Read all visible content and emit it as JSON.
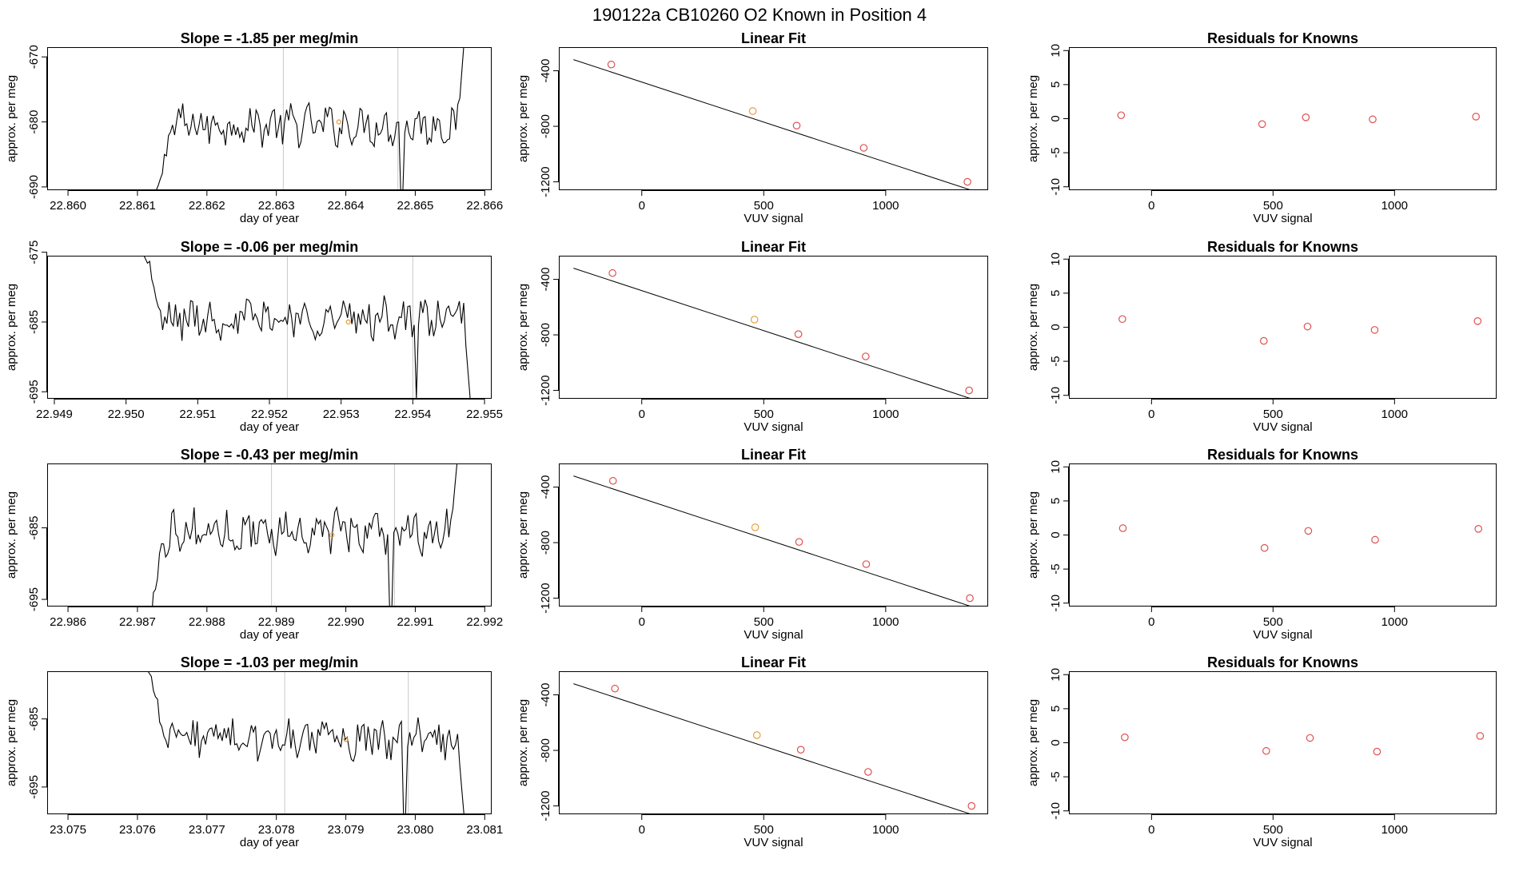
{
  "figure": {
    "main_title": "190122a      CB10260    O2 Known in Position  4"
  },
  "colors": {
    "trace": "#000000",
    "vline": "#c8c8c8",
    "known_point": "#e05050",
    "highlight_point": "#e8a040",
    "fit_line": "#000000"
  },
  "chart_data": [
    {
      "type": "line",
      "row": 1,
      "panel": "timeseries",
      "title": "Slope =  -1.85  per meg/min",
      "xlabel": "day of year",
      "ylabel": "approx. per meg",
      "xlim": [
        22.8597,
        22.8661
      ],
      "ylim": [
        -690.5,
        -668.5
      ],
      "xticks": [
        "22.860",
        "22.861",
        "22.862",
        "22.863",
        "22.864",
        "22.865",
        "22.866"
      ],
      "xtick_values": [
        22.86,
        22.861,
        22.862,
        22.863,
        22.864,
        22.865,
        22.866
      ],
      "yticks": [
        "-670",
        "-680",
        "-690"
      ],
      "ytick_values": [
        -670,
        -680,
        -690
      ],
      "vlines": [
        22.8631,
        22.86475
      ],
      "start_x": 22.8613,
      "end_x": 22.8657,
      "level": -680.5,
      "noise": 2.6,
      "lead_in": -691,
      "lead_out": -668,
      "dip_x": 22.8648,
      "dip_y": -691,
      "highlight": {
        "x": 22.8639,
        "y": -680
      }
    },
    {
      "type": "scatter",
      "row": 1,
      "panel": "linear_fit",
      "title": "Linear Fit",
      "xlabel": "VUV signal",
      "ylabel": "approx. per meg",
      "xlim": [
        -340,
        1420
      ],
      "ylim": [
        -1260,
        -230
      ],
      "xticks": [
        "0",
        "500",
        "1000"
      ],
      "xtick_values": [
        0,
        500,
        1000
      ],
      "yticks": [
        "-400",
        "-800",
        "-1200"
      ],
      "ytick_values": [
        -400,
        -800,
        -1200
      ],
      "points": [
        [
          -125,
          -355
        ],
        [
          455,
          -690
        ],
        [
          635,
          -795
        ],
        [
          910,
          -955
        ],
        [
          1335,
          -1200
        ]
      ],
      "highlight_index": 1,
      "fit_line": {
        "x": [
          -280,
          1420
        ],
        "y": [
          -320,
          -1300
        ]
      }
    },
    {
      "type": "scatter",
      "row": 1,
      "panel": "residuals",
      "title": "Residuals for Knowns",
      "xlabel": "VUV signal",
      "ylabel": "approx. per meg",
      "xlim": [
        -340,
        1420
      ],
      "ylim": [
        -10.5,
        10.5
      ],
      "xticks": [
        "0",
        "500",
        "1000"
      ],
      "xtick_values": [
        0,
        500,
        1000
      ],
      "yticks": [
        "-10",
        "-5",
        "0",
        "5",
        "10"
      ],
      "ytick_values": [
        -10,
        -5,
        0,
        5,
        10
      ],
      "points": [
        [
          -125,
          0.5
        ],
        [
          455,
          -0.8
        ],
        [
          635,
          0.2
        ],
        [
          910,
          -0.1
        ],
        [
          1335,
          0.3
        ]
      ]
    },
    {
      "type": "line",
      "row": 2,
      "panel": "timeseries",
      "title": "Slope =  -0.06  per meg/min",
      "xlabel": "day of year",
      "ylabel": "approx. per meg",
      "xlim": [
        22.9489,
        22.9551
      ],
      "ylim": [
        -696,
        -675.5
      ],
      "xticks": [
        "22.949",
        "22.950",
        "22.951",
        "22.952",
        "22.953",
        "22.954",
        "22.955"
      ],
      "xtick_values": [
        22.949,
        22.95,
        22.951,
        22.952,
        22.953,
        22.954,
        22.955
      ],
      "yticks": [
        "-675",
        "-685",
        "-695"
      ],
      "ytick_values": [
        -675,
        -685,
        -695
      ],
      "vlines": [
        22.95225,
        22.954
      ],
      "start_x": 22.9503,
      "end_x": 22.9548,
      "level": -684.5,
      "noise": 2.4,
      "lead_in": -675.5,
      "lead_out": -696,
      "dip_x": 22.95405,
      "dip_y": -696,
      "highlight": {
        "x": 22.9531,
        "y": -685
      }
    },
    {
      "type": "scatter",
      "row": 2,
      "panel": "linear_fit",
      "title": "Linear Fit",
      "xlabel": "VUV signal",
      "ylabel": "approx. per meg",
      "xlim": [
        -340,
        1420
      ],
      "ylim": [
        -1260,
        -230
      ],
      "xticks": [
        "0",
        "500",
        "1000"
      ],
      "xtick_values": [
        0,
        500,
        1000
      ],
      "yticks": [
        "-400",
        "-800",
        "-1200"
      ],
      "ytick_values": [
        -400,
        -800,
        -1200
      ],
      "points": [
        [
          -120,
          -355
        ],
        [
          462,
          -690
        ],
        [
          642,
          -795
        ],
        [
          918,
          -955
        ],
        [
          1342,
          -1200
        ]
      ],
      "highlight_index": 1,
      "fit_line": {
        "x": [
          -280,
          1420
        ],
        "y": [
          -320,
          -1300
        ]
      }
    },
    {
      "type": "scatter",
      "row": 2,
      "panel": "residuals",
      "title": "Residuals for Knowns",
      "xlabel": "VUV signal",
      "ylabel": "approx. per meg",
      "xlim": [
        -340,
        1420
      ],
      "ylim": [
        -10.5,
        10.5
      ],
      "xticks": [
        "0",
        "500",
        "1000"
      ],
      "xtick_values": [
        0,
        500,
        1000
      ],
      "yticks": [
        "-10",
        "-5",
        "0",
        "5",
        "10"
      ],
      "ytick_values": [
        -10,
        -5,
        0,
        5,
        10
      ],
      "points": [
        [
          -120,
          1.2
        ],
        [
          462,
          -2.0
        ],
        [
          642,
          0.1
        ],
        [
          918,
          -0.4
        ],
        [
          1342,
          0.9
        ]
      ]
    },
    {
      "type": "line",
      "row": 3,
      "panel": "timeseries",
      "title": "Slope =  -0.43  per meg/min",
      "xlabel": "day of year",
      "ylabel": "approx. per meg",
      "xlim": [
        22.9857,
        22.9921
      ],
      "ylim": [
        -696,
        -676
      ],
      "xticks": [
        "22.986",
        "22.987",
        "22.988",
        "22.989",
        "22.990",
        "22.991",
        "22.992"
      ],
      "xtick_values": [
        22.986,
        22.987,
        22.988,
        22.989,
        22.99,
        22.991,
        22.992
      ],
      "yticks": [
        "-685",
        "-695"
      ],
      "ytick_values": [
        -685,
        -695
      ],
      "vlines": [
        22.98893,
        22.9907
      ],
      "start_x": 22.9872,
      "end_x": 22.9916,
      "level": -685.5,
      "noise": 2.6,
      "lead_in": -697,
      "lead_out": -676,
      "dip_x": 22.99065,
      "dip_y": -697,
      "highlight": {
        "x": 22.9898,
        "y": -686
      }
    },
    {
      "type": "scatter",
      "row": 3,
      "panel": "linear_fit",
      "title": "Linear Fit",
      "xlabel": "VUV signal",
      "ylabel": "approx. per meg",
      "xlim": [
        -340,
        1420
      ],
      "ylim": [
        -1260,
        -230
      ],
      "xticks": [
        "0",
        "500",
        "1000"
      ],
      "xtick_values": [
        0,
        500,
        1000
      ],
      "yticks": [
        "-400",
        "-800",
        "-1200"
      ],
      "ytick_values": [
        -400,
        -800,
        -1200
      ],
      "points": [
        [
          -118,
          -355
        ],
        [
          465,
          -690
        ],
        [
          645,
          -795
        ],
        [
          920,
          -955
        ],
        [
          1345,
          -1200
        ]
      ],
      "highlight_index": 1,
      "fit_line": {
        "x": [
          -280,
          1420
        ],
        "y": [
          -320,
          -1300
        ]
      }
    },
    {
      "type": "scatter",
      "row": 3,
      "panel": "residuals",
      "title": "Residuals for Knowns",
      "xlabel": "VUV signal",
      "ylabel": "approx. per meg",
      "xlim": [
        -340,
        1420
      ],
      "ylim": [
        -10.5,
        10.5
      ],
      "xticks": [
        "0",
        "500",
        "1000"
      ],
      "xtick_values": [
        0,
        500,
        1000
      ],
      "yticks": [
        "-10",
        "-5",
        "0",
        "5",
        "10"
      ],
      "ytick_values": [
        -10,
        -5,
        0,
        5,
        10
      ],
      "points": [
        [
          -118,
          1.0
        ],
        [
          465,
          -1.9
        ],
        [
          645,
          0.6
        ],
        [
          920,
          -0.7
        ],
        [
          1345,
          0.9
        ]
      ]
    },
    {
      "type": "line",
      "row": 4,
      "panel": "timeseries",
      "title": "Slope =  -1.03  per meg/min",
      "xlabel": "day of year",
      "ylabel": "approx. per meg",
      "xlim": [
        23.0747,
        23.0811
      ],
      "ylim": [
        -699,
        -678
      ],
      "xticks": [
        "23.075",
        "23.076",
        "23.077",
        "23.078",
        "23.079",
        "23.080",
        "23.081"
      ],
      "xtick_values": [
        23.075,
        23.076,
        23.077,
        23.078,
        23.079,
        23.08,
        23.081
      ],
      "yticks": [
        "-685",
        "-695"
      ],
      "ytick_values": [
        -685,
        -695
      ],
      "vlines": [
        23.07812,
        23.0799
      ],
      "start_x": 23.0762,
      "end_x": 23.0807,
      "level": -688,
      "noise": 2.4,
      "lead_in": -678,
      "lead_out": -699,
      "dip_x": 23.07985,
      "dip_y": -699,
      "highlight": {
        "x": 23.079,
        "y": -688
      }
    },
    {
      "type": "scatter",
      "row": 4,
      "panel": "linear_fit",
      "title": "Linear Fit",
      "xlabel": "VUV signal",
      "ylabel": "approx. per meg",
      "xlim": [
        -340,
        1420
      ],
      "ylim": [
        -1260,
        -230
      ],
      "xticks": [
        "0",
        "500",
        "1000"
      ],
      "xtick_values": [
        0,
        500,
        1000
      ],
      "yticks": [
        "-400",
        "-800",
        "-1200"
      ],
      "ytick_values": [
        -400,
        -800,
        -1200
      ],
      "points": [
        [
          -110,
          -355
        ],
        [
          472,
          -690
        ],
        [
          652,
          -795
        ],
        [
          928,
          -955
        ],
        [
          1352,
          -1200
        ]
      ],
      "highlight_index": 1,
      "fit_line": {
        "x": [
          -280,
          1420
        ],
        "y": [
          -320,
          -1300
        ]
      }
    },
    {
      "type": "scatter",
      "row": 4,
      "panel": "residuals",
      "title": "Residuals for Knowns",
      "xlabel": "VUV signal",
      "ylabel": "approx. per meg",
      "xlim": [
        -340,
        1420
      ],
      "ylim": [
        -10.5,
        10.5
      ],
      "xticks": [
        "0",
        "500",
        "1000"
      ],
      "xtick_values": [
        0,
        500,
        1000
      ],
      "yticks": [
        "-10",
        "-5",
        "0",
        "5",
        "10"
      ],
      "ytick_values": [
        -10,
        -5,
        0,
        5,
        10
      ],
      "points": [
        [
          -110,
          0.8
        ],
        [
          472,
          -1.2
        ],
        [
          652,
          0.7
        ],
        [
          928,
          -1.3
        ],
        [
          1352,
          1.0
        ]
      ]
    }
  ]
}
